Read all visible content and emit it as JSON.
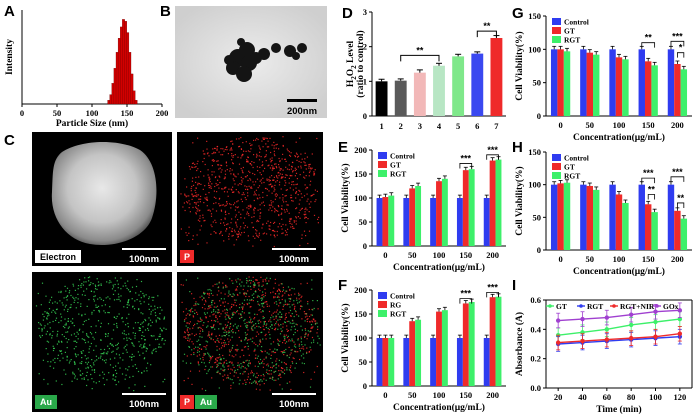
{
  "panels": {
    "A": "A",
    "B": "B",
    "C": "C",
    "D": "D",
    "E": "E",
    "F": "F",
    "G": "G",
    "H": "H",
    "I": "I"
  },
  "micrographs": {
    "tem_scale": "200nm",
    "electron_tag": "Electron",
    "p_tag": "P",
    "au_tag": "Au",
    "scale_100": "100nm"
  },
  "colors": {
    "blue": "#2f3cf0",
    "red": "#ef2a2a",
    "green": "#3df06a"
  },
  "chart_data": [
    {
      "id": "A",
      "type": "bar",
      "xlabel": "Particle Size (nm)",
      "ylabel": "Intensity",
      "xlim": [
        0,
        200
      ],
      "xticks": [
        0,
        50,
        100,
        150,
        200
      ],
      "x": [
        124,
        127,
        130,
        133,
        136,
        139,
        142,
        145,
        148,
        151,
        154,
        157,
        160,
        163
      ],
      "values": [
        4,
        10,
        22,
        38,
        55,
        70,
        82,
        90,
        88,
        76,
        55,
        32,
        14,
        4
      ]
    },
    {
      "id": "D",
      "type": "bar",
      "ylabel": "H2O2 Level (ratio to control)",
      "ylabel_main": "H",
      "ylabel_sub1": "2",
      "ylabel_mid": "O",
      "ylabel_sub2": "2",
      "ylabel_tail": " Level",
      "ylabel_line2": "(ratio to control)",
      "ylim": [
        0,
        3
      ],
      "yticks": [
        0,
        1,
        2,
        3
      ],
      "categories": [
        "1",
        "2",
        "3",
        "4",
        "5",
        "6",
        "7"
      ],
      "values": [
        1.0,
        1.02,
        1.25,
        1.45,
        1.72,
        1.8,
        2.25
      ],
      "errors": [
        0.06,
        0.05,
        0.08,
        0.07,
        0.06,
        0.05,
        0.07
      ],
      "colors": [
        "#000000",
        "#5a5a5a",
        "#f2b8b8",
        "#b8e6c4",
        "#7fe88a",
        "#3a48f0",
        "#ef2a2a"
      ],
      "annotations": [
        {
          "text": "**",
          "from": 2,
          "to": 4,
          "y": 1.75
        },
        {
          "text": "**",
          "from": 6,
          "to": 7,
          "y": 2.45
        }
      ]
    },
    {
      "id": "E",
      "type": "bar",
      "ylabel": "Cell Viability(%)",
      "xlabel": "Concentration(μg/mL)",
      "ylim": [
        0,
        200
      ],
      "yticks": [
        0,
        50,
        100,
        150,
        200
      ],
      "categories": [
        "0",
        "50",
        "100",
        "150",
        "200"
      ],
      "series": [
        {
          "name": "Control",
          "values": [
            100,
            100,
            100,
            100,
            100
          ]
        },
        {
          "name": "GT",
          "values": [
            102,
            120,
            135,
            158,
            178
          ]
        },
        {
          "name": "RGT",
          "values": [
            105,
            125,
            140,
            160,
            180
          ]
        }
      ],
      "annotations": [
        {
          "text": "***",
          "group": 3,
          "y": 172
        },
        {
          "text": "***",
          "group": 4,
          "y": 190
        }
      ]
    },
    {
      "id": "F",
      "type": "bar",
      "ylabel": "Cell Viability(%)",
      "xlabel": "Concentration(μg/mL)",
      "ylim": [
        0,
        200
      ],
      "yticks": [
        0,
        50,
        100,
        150,
        200
      ],
      "categories": [
        "0",
        "50",
        "100",
        "150",
        "200"
      ],
      "series": [
        {
          "name": "Control",
          "values": [
            100,
            100,
            100,
            100,
            100
          ]
        },
        {
          "name": "RG",
          "values": [
            100,
            135,
            155,
            172,
            185
          ]
        },
        {
          "name": "RGT",
          "values": [
            100,
            138,
            158,
            175,
            186
          ]
        }
      ],
      "annotations": [
        {
          "text": "***",
          "group": 3,
          "y": 182
        },
        {
          "text": "***",
          "group": 4,
          "y": 195
        }
      ]
    },
    {
      "id": "G",
      "type": "bar",
      "ylabel": "Cell Viability(%)",
      "xlabel": "Concentration(μg/mL)",
      "ylim": [
        0,
        150
      ],
      "yticks": [
        0,
        50,
        100,
        150
      ],
      "categories": [
        "0",
        "50",
        "100",
        "150",
        "200"
      ],
      "series": [
        {
          "name": "Control",
          "values": [
            100,
            100,
            100,
            100,
            100
          ]
        },
        {
          "name": "GT",
          "values": [
            100,
            95,
            88,
            82,
            78
          ]
        },
        {
          "name": "RGT",
          "values": [
            97,
            92,
            85,
            76,
            70
          ]
        }
      ],
      "annotations": [
        {
          "text": "**",
          "group": 3,
          "y": 110
        },
        {
          "text": "***",
          "group": 4,
          "y": 112
        },
        {
          "text": "*",
          "group": 4,
          "y": 95,
          "inner": true
        }
      ]
    },
    {
      "id": "H",
      "type": "bar",
      "ylabel": "Cell Viability(%)",
      "xlabel": "Concentration(μg/mL)",
      "ylim": [
        0,
        150
      ],
      "yticks": [
        0,
        50,
        100,
        150
      ],
      "categories": [
        "0",
        "50",
        "100",
        "150",
        "200"
      ],
      "series": [
        {
          "name": "Control",
          "values": [
            100,
            100,
            100,
            100,
            100
          ]
        },
        {
          "name": "GT",
          "values": [
            102,
            98,
            85,
            70,
            60
          ]
        },
        {
          "name": "RGT",
          "values": [
            103,
            92,
            72,
            58,
            48
          ]
        }
      ],
      "annotations": [
        {
          "text": "***",
          "group": 3,
          "y": 110
        },
        {
          "text": "**",
          "group": 3,
          "y": 85,
          "inner": true
        },
        {
          "text": "***",
          "group": 4,
          "y": 112
        },
        {
          "text": "**",
          "group": 4,
          "y": 72,
          "inner": true
        }
      ]
    },
    {
      "id": "I",
      "type": "line",
      "ylabel": "Absorbance (A)",
      "xlabel": "Time (min)",
      "ylim": [
        0.0,
        0.6
      ],
      "yticks": [
        0.0,
        0.2,
        0.4,
        0.6
      ],
      "x": [
        20,
        40,
        60,
        80,
        100,
        120
      ],
      "series": [
        {
          "name": "GT",
          "color": "#3df06a",
          "values": [
            0.36,
            0.38,
            0.4,
            0.43,
            0.45,
            0.47
          ]
        },
        {
          "name": "RGT",
          "color": "#2f3cf0",
          "values": [
            0.3,
            0.31,
            0.32,
            0.33,
            0.34,
            0.35
          ]
        },
        {
          "name": "RGT+NIR",
          "color": "#ef2a2a",
          "values": [
            0.31,
            0.32,
            0.33,
            0.34,
            0.35,
            0.37
          ]
        },
        {
          "name": "GOx",
          "color": "#a040d0",
          "values": [
            0.46,
            0.47,
            0.48,
            0.5,
            0.52,
            0.53
          ]
        }
      ],
      "error": 0.05
    }
  ]
}
